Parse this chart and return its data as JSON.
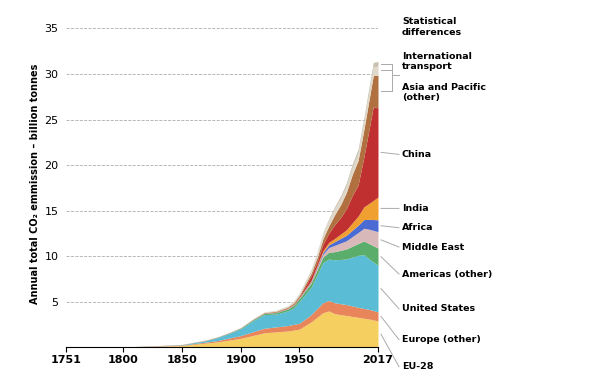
{
  "ylabel": "Annual total CO₂ emmission – billion tonnes",
  "xlim": [
    1751,
    2017
  ],
  "ylim": [
    0,
    36
  ],
  "yticks": [
    5,
    10,
    15,
    20,
    25,
    30,
    35
  ],
  "xticks": [
    1751,
    1800,
    1850,
    1900,
    1950,
    2017
  ],
  "regions": [
    "EU-28",
    "Europe (other)",
    "United States",
    "Americas (other)",
    "Middle East",
    "Africa",
    "India",
    "China",
    "Asia and Pacific\n(other)",
    "International\ntransport",
    "Statistical\ndifferences"
  ],
  "legend_labels": [
    "EU-28",
    "Europe (other)",
    "United States",
    "Americas (other)",
    "Middle East",
    "Africa",
    "India",
    "China",
    "Asia and Pacific\n(other)",
    "International\ntransport",
    "Statistical\ndifferences"
  ],
  "colors": [
    "#f5d061",
    "#e8855a",
    "#5bbcd6",
    "#5aad6b",
    "#d8b8b8",
    "#4a6ad4",
    "#f0a030",
    "#c03030",
    "#b07040",
    "#e0d8c8",
    "#c8c0b0"
  ]
}
